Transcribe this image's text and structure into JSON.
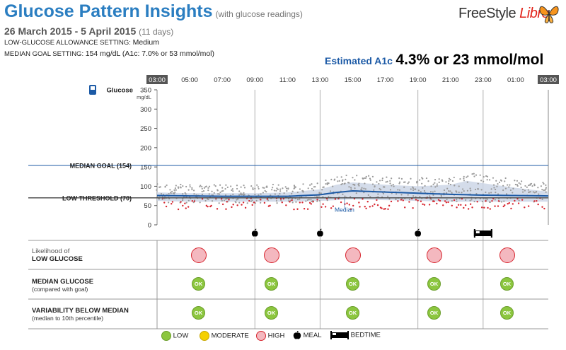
{
  "header": {
    "title": "Glucose Pattern Insights",
    "subtitle": "(with glucose readings)",
    "date_range": "26 March 2015 - 5 April 2015",
    "days": "(11 days)",
    "low_glucose_setting_label": "LOW-GLUCOSE ALLOWANCE SETTING:",
    "low_glucose_setting_value": "Medium",
    "median_goal_setting_label": "MEDIAN GOAL SETTING:",
    "median_goal_setting_value": "154 mg/dL (A1c: 7.0% or 53 mmol/mol)",
    "logo_main": "FreeStyle",
    "logo_accent": "Libre",
    "a1c_label": "Estimated A1c",
    "a1c_value": "4.3% or 23 mmol/mol"
  },
  "chart_data": {
    "type": "line",
    "x_tick_labels": [
      "03:00",
      "05:00",
      "07:00",
      "09:00",
      "11:00",
      "13:00",
      "15:00",
      "17:00",
      "19:00",
      "21:00",
      "23:00",
      "01:00",
      "03:00"
    ],
    "x_range_hours": [
      3,
      27
    ],
    "y_ticks": [
      0,
      50,
      100,
      150,
      200,
      250,
      300,
      350
    ],
    "y_unit": "mg/dL",
    "ylim": [
      0,
      350
    ],
    "glucose_label": "Glucose",
    "median_goal": 154,
    "median_goal_label": "MEDIAN GOAL (154)",
    "low_threshold": 70,
    "low_threshold_label": "LOW THRESHOLD (70)",
    "median_label": "Median",
    "median_series": {
      "x": [
        3,
        5,
        7,
        9,
        11,
        12,
        13,
        14,
        15,
        17,
        19,
        21,
        23,
        25,
        27
      ],
      "y": [
        76,
        75,
        74,
        74,
        74,
        76,
        78,
        84,
        88,
        85,
        82,
        79,
        77,
        76,
        75
      ]
    },
    "p10_series": {
      "x": [
        3,
        5,
        7,
        9,
        11,
        13,
        15,
        17,
        19,
        21,
        23,
        25,
        27
      ],
      "y": [
        62,
        60,
        60,
        60,
        60,
        62,
        66,
        64,
        62,
        60,
        60,
        60,
        60
      ]
    },
    "p90_series": {
      "x": [
        3,
        5,
        7,
        9,
        11,
        13,
        14,
        15,
        17,
        19,
        21,
        22,
        23,
        25,
        27
      ],
      "y": [
        84,
        82,
        82,
        82,
        84,
        92,
        104,
        110,
        104,
        100,
        104,
        114,
        108,
        96,
        86
      ]
    },
    "meals": [
      9,
      13,
      19
    ],
    "bedtime": 23
  },
  "periods": [
    {
      "likelihood": "high",
      "median": "ok",
      "variability": "ok"
    },
    {
      "likelihood": "high",
      "median": "ok",
      "variability": "ok"
    },
    {
      "likelihood": "high",
      "median": "ok",
      "variability": "ok"
    },
    {
      "likelihood": "high",
      "median": "ok",
      "variability": "ok"
    },
    {
      "likelihood": "high",
      "median": "ok",
      "variability": "ok"
    }
  ],
  "ok_text": "OK",
  "rows": {
    "likelihood_pre": "Likelihood of",
    "likelihood": "LOW GLUCOSE",
    "median": "MEDIAN GLUCOSE",
    "median_sub": "(compared with goal)",
    "variability": "VARIABILITY BELOW MEDIAN",
    "variability_sub": "(median to 10th percentile)"
  },
  "legend": {
    "low": "LOW",
    "moderate": "MODERATE",
    "high": "HIGH",
    "meal": "MEAL",
    "bedtime": "BEDTIME"
  },
  "colors": {
    "blue": "#1c5aa6",
    "title_blue": "#2b7ec1",
    "ok_green": "#8cc63f",
    "moderate_yellow": "#f5d000",
    "high_pink": "#f4b8bf",
    "high_red": "#d7262f",
    "low_dot_red": "#d7262f",
    "band": "#cdd6e6"
  }
}
